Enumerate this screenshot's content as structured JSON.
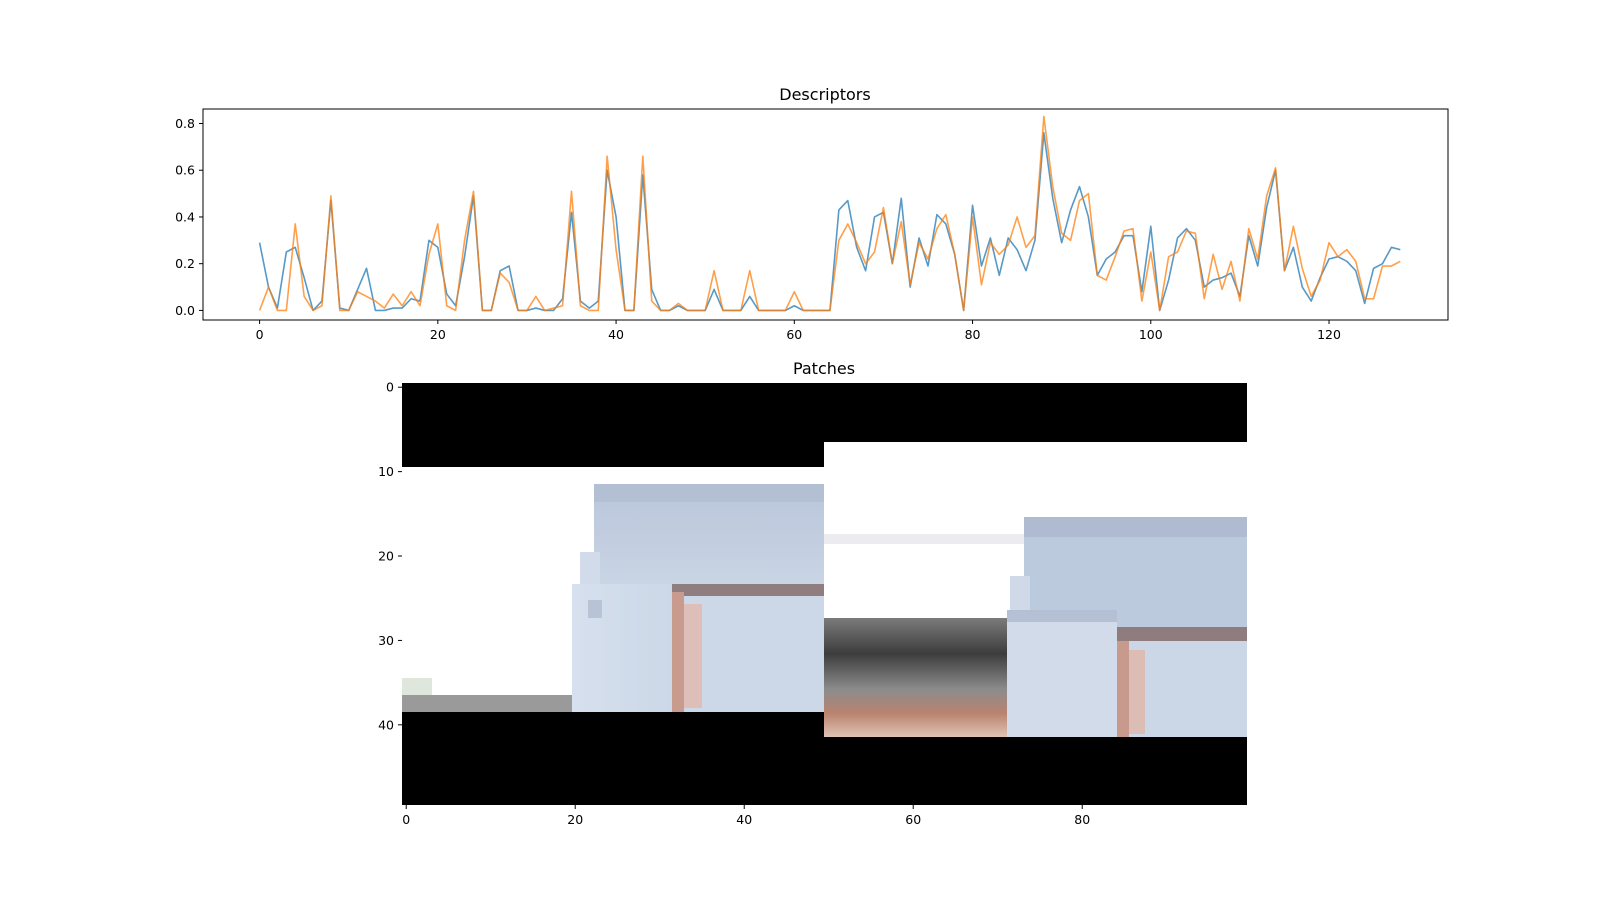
{
  "chart_data": [
    {
      "type": "line",
      "title": "Descriptors",
      "xlabel": "",
      "ylabel": "",
      "xlim": [
        -6.35,
        133.35
      ],
      "ylim": [
        -0.041,
        0.862
      ],
      "x_ticks": [
        0,
        20,
        40,
        60,
        80,
        100,
        120
      ],
      "y_ticks": [
        0.0,
        0.2,
        0.4,
        0.6,
        0.8
      ],
      "grid": false,
      "colors": [
        "#1f77b4",
        "#ff7f0e"
      ],
      "series": [
        {
          "values": [
            0.29,
            0.1,
            0.01,
            0.25,
            0.27,
            0.14,
            0.0,
            0.04,
            0.47,
            0.01,
            0.0,
            0.09,
            0.18,
            0.0,
            0.0,
            0.01,
            0.01,
            0.05,
            0.04,
            0.3,
            0.27,
            0.07,
            0.02,
            0.23,
            0.49,
            0.0,
            0.0,
            0.17,
            0.19,
            0.0,
            0.0,
            0.01,
            0.0,
            0.0,
            0.05,
            0.42,
            0.04,
            0.01,
            0.04,
            0.6,
            0.4,
            0.0,
            0.0,
            0.58,
            0.09,
            0.0,
            0.0,
            0.02,
            0.0,
            0.0,
            0.0,
            0.09,
            0.0,
            0.0,
            0.0,
            0.06,
            0.0,
            0.0,
            0.0,
            0.0,
            0.02,
            0.0,
            0.0,
            0.0,
            0.0,
            0.43,
            0.47,
            0.27,
            0.17,
            0.4,
            0.42,
            0.2,
            0.48,
            0.1,
            0.31,
            0.19,
            0.41,
            0.37,
            0.24,
            0.0,
            0.45,
            0.19,
            0.31,
            0.15,
            0.31,
            0.26,
            0.17,
            0.3,
            0.76,
            0.48,
            0.29,
            0.43,
            0.53,
            0.4,
            0.15,
            0.22,
            0.25,
            0.32,
            0.32,
            0.08,
            0.36,
            0.0,
            0.13,
            0.31,
            0.35,
            0.3,
            0.1,
            0.13,
            0.14,
            0.16,
            0.06,
            0.32,
            0.19,
            0.44,
            0.6,
            0.17,
            0.27,
            0.1,
            0.04,
            0.14,
            0.22,
            0.23,
            0.21,
            0.17,
            0.03,
            0.18,
            0.2,
            0.27,
            0.26
          ]
        },
        {
          "values": [
            0.0,
            0.1,
            0.0,
            0.0,
            0.37,
            0.06,
            0.0,
            0.02,
            0.49,
            0.0,
            0.0,
            0.08,
            0.06,
            0.04,
            0.01,
            0.07,
            0.02,
            0.08,
            0.02,
            0.24,
            0.37,
            0.02,
            0.0,
            0.3,
            0.51,
            0.0,
            0.0,
            0.16,
            0.12,
            0.0,
            0.0,
            0.06,
            0.0,
            0.01,
            0.02,
            0.51,
            0.02,
            0.0,
            0.0,
            0.66,
            0.26,
            0.0,
            0.0,
            0.66,
            0.04,
            0.0,
            0.0,
            0.03,
            0.0,
            0.0,
            0.0,
            0.17,
            0.0,
            0.0,
            0.0,
            0.17,
            0.0,
            0.0,
            0.0,
            0.0,
            0.08,
            0.0,
            0.0,
            0.0,
            0.0,
            0.3,
            0.37,
            0.29,
            0.2,
            0.25,
            0.44,
            0.2,
            0.38,
            0.11,
            0.29,
            0.22,
            0.35,
            0.41,
            0.24,
            0.0,
            0.4,
            0.11,
            0.29,
            0.24,
            0.28,
            0.4,
            0.27,
            0.32,
            0.83,
            0.53,
            0.33,
            0.3,
            0.47,
            0.5,
            0.15,
            0.13,
            0.23,
            0.34,
            0.35,
            0.04,
            0.25,
            0.0,
            0.23,
            0.25,
            0.34,
            0.33,
            0.05,
            0.24,
            0.09,
            0.21,
            0.04,
            0.35,
            0.22,
            0.49,
            0.61,
            0.17,
            0.36,
            0.18,
            0.06,
            0.13,
            0.29,
            0.23,
            0.26,
            0.21,
            0.05,
            0.05,
            0.19,
            0.19,
            0.21
          ]
        }
      ]
    },
    {
      "type": "image",
      "title": "Patches",
      "xlabel": "",
      "ylabel": "",
      "x_ticks": [
        0,
        20,
        40,
        60,
        80
      ],
      "y_ticks": [
        0,
        10,
        20,
        30,
        40
      ],
      "xlim": [
        -0.5,
        99.5
      ],
      "ylim": [
        49.5,
        -0.5
      ]
    }
  ]
}
